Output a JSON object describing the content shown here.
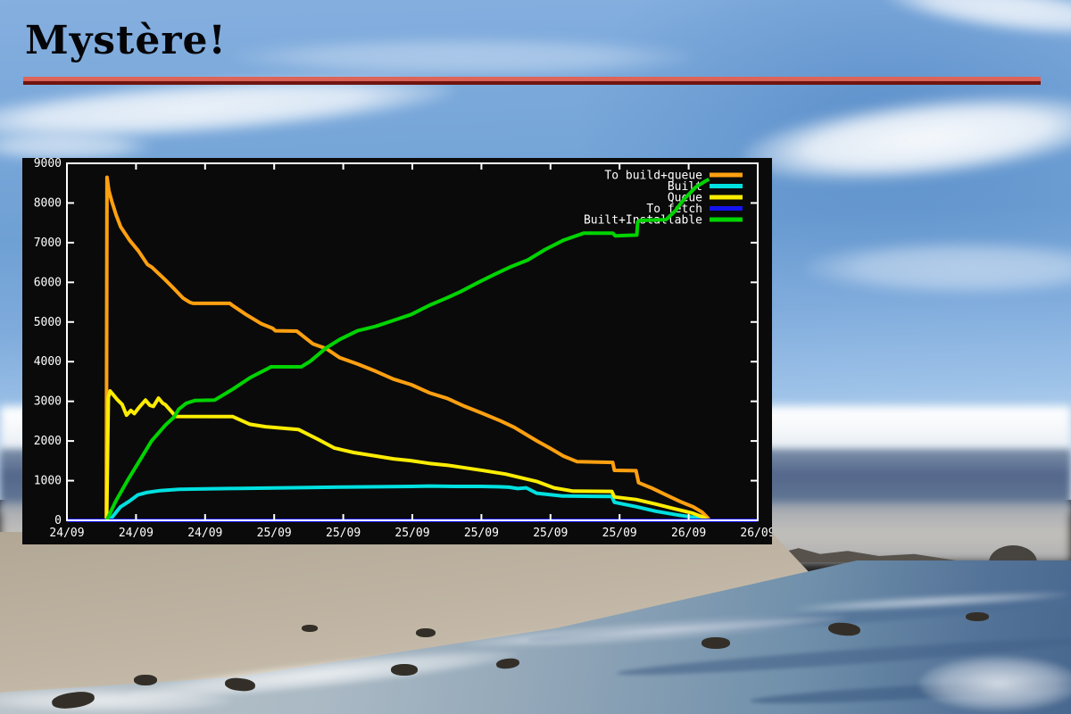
{
  "slide": {
    "title": "Mystère!",
    "rule_color_top": "#dd6458",
    "rule_color_bottom": "#701410"
  },
  "chart_data": {
    "type": "line",
    "title": "",
    "xlabel": "",
    "ylabel": "",
    "plot_background": "#0a0a0a",
    "frame_color": "#ffffff",
    "text_color": "#ffffff",
    "grid": false,
    "legend_position": "top-right-inside",
    "x_unit": "hours since first tick (ticks every 4h)",
    "x_range": [
      0,
      40
    ],
    "y_range": [
      0,
      9000
    ],
    "x_tick_hours": [
      0,
      4,
      8,
      12,
      16,
      20,
      24,
      28,
      32,
      36,
      40
    ],
    "x_tick_labels": [
      "24/09",
      "24/09",
      "24/09",
      "25/09",
      "25/09",
      "25/09",
      "25/09",
      "25/09",
      "25/09",
      "26/09",
      "26/09"
    ],
    "y_ticks": [
      0,
      1000,
      2000,
      3000,
      4000,
      5000,
      6000,
      7000,
      8000,
      9000
    ],
    "y_tick_labels": [
      "0",
      "1000",
      "2000",
      "3000",
      "4000",
      "5000",
      "6000",
      "7000",
      "8000",
      "9000"
    ],
    "series": [
      {
        "name": "To build+queue",
        "color": "#ffa010",
        "points": [
          [
            2.28,
            0
          ],
          [
            2.32,
            8650
          ],
          [
            2.43,
            8310
          ],
          [
            2.6,
            8040
          ],
          [
            2.85,
            7700
          ],
          [
            3.11,
            7400
          ],
          [
            3.63,
            7060
          ],
          [
            4.14,
            6790
          ],
          [
            4.66,
            6450
          ],
          [
            4.92,
            6380
          ],
          [
            5.7,
            6060
          ],
          [
            6.22,
            5830
          ],
          [
            6.73,
            5600
          ],
          [
            7.1,
            5500
          ],
          [
            7.3,
            5470
          ],
          [
            9.43,
            5470
          ],
          [
            9.58,
            5420
          ],
          [
            10.36,
            5190
          ],
          [
            11.24,
            4960
          ],
          [
            11.91,
            4840
          ],
          [
            12.07,
            4780
          ],
          [
            13.31,
            4770
          ],
          [
            14.24,
            4450
          ],
          [
            15.02,
            4330
          ],
          [
            15.8,
            4100
          ],
          [
            16.83,
            3940
          ],
          [
            17.87,
            3760
          ],
          [
            18.91,
            3560
          ],
          [
            19.94,
            3420
          ],
          [
            20.98,
            3215
          ],
          [
            22.01,
            3075
          ],
          [
            23.05,
            2870
          ],
          [
            24.09,
            2690
          ],
          [
            25.12,
            2505
          ],
          [
            25.9,
            2345
          ],
          [
            27.2,
            2005
          ],
          [
            27.97,
            1820
          ],
          [
            28.75,
            1620
          ],
          [
            29.53,
            1480
          ],
          [
            31.6,
            1460
          ],
          [
            31.7,
            1260
          ],
          [
            32.95,
            1250
          ],
          [
            33.1,
            950
          ],
          [
            33.93,
            800
          ],
          [
            34.7,
            640
          ],
          [
            35.48,
            480
          ],
          [
            36.26,
            340
          ],
          [
            36.78,
            205
          ],
          [
            37.09,
            70
          ],
          [
            37.2,
            0
          ]
        ]
      },
      {
        "name": "Built",
        "color": "#00e0e0",
        "points": [
          [
            2.28,
            0
          ],
          [
            2.6,
            70
          ],
          [
            3.1,
            340
          ],
          [
            3.6,
            480
          ],
          [
            4.1,
            640
          ],
          [
            4.6,
            700
          ],
          [
            5.4,
            750
          ],
          [
            6.5,
            780
          ],
          [
            8,
            795
          ],
          [
            10,
            805
          ],
          [
            12,
            815
          ],
          [
            14,
            825
          ],
          [
            16,
            840
          ],
          [
            18,
            845
          ],
          [
            20,
            855
          ],
          [
            21,
            865
          ],
          [
            22.5,
            855
          ],
          [
            24,
            855
          ],
          [
            25,
            845
          ],
          [
            25.6,
            835
          ],
          [
            26.1,
            800
          ],
          [
            26.6,
            820
          ],
          [
            27.2,
            685
          ],
          [
            28.7,
            615
          ],
          [
            30.5,
            605
          ],
          [
            31.55,
            600
          ],
          [
            31.7,
            455
          ],
          [
            32.95,
            345
          ],
          [
            34.1,
            230
          ],
          [
            35.3,
            140
          ],
          [
            36.6,
            55
          ],
          [
            37.05,
            0
          ]
        ]
      },
      {
        "name": "Queue",
        "color": "#fced00",
        "points": [
          [
            2.3,
            0
          ],
          [
            2.4,
            3100
          ],
          [
            2.5,
            3260
          ],
          [
            2.9,
            3050
          ],
          [
            3.2,
            2920
          ],
          [
            3.45,
            2650
          ],
          [
            3.7,
            2770
          ],
          [
            3.9,
            2690
          ],
          [
            4.2,
            2860
          ],
          [
            4.55,
            3030
          ],
          [
            4.8,
            2900
          ],
          [
            5.0,
            2870
          ],
          [
            5.3,
            3080
          ],
          [
            5.55,
            2950
          ],
          [
            5.7,
            2915
          ],
          [
            6.3,
            2620
          ],
          [
            9.6,
            2615
          ],
          [
            10.6,
            2420
          ],
          [
            11.5,
            2360
          ],
          [
            13.4,
            2290
          ],
          [
            14.5,
            2050
          ],
          [
            15.5,
            1820
          ],
          [
            16.6,
            1710
          ],
          [
            17.9,
            1620
          ],
          [
            18.9,
            1550
          ],
          [
            19.9,
            1505
          ],
          [
            20.98,
            1435
          ],
          [
            22,
            1390
          ],
          [
            23.1,
            1320
          ],
          [
            24.1,
            1255
          ],
          [
            25.4,
            1165
          ],
          [
            27.2,
            980
          ],
          [
            28.2,
            820
          ],
          [
            29.3,
            735
          ],
          [
            31.55,
            730
          ],
          [
            31.7,
            590
          ],
          [
            32.95,
            525
          ],
          [
            34.1,
            410
          ],
          [
            35.1,
            300
          ],
          [
            36.2,
            185
          ],
          [
            36.9,
            70
          ],
          [
            37.1,
            0
          ]
        ]
      },
      {
        "name": "To fetch",
        "color": "#1414f0",
        "points": [
          [
            0,
            0
          ],
          [
            40,
            0
          ]
        ]
      },
      {
        "name": "Built+Installable",
        "color": "#00d400",
        "points": [
          [
            2.3,
            0
          ],
          [
            2.85,
            500
          ],
          [
            3.5,
            1000
          ],
          [
            4.2,
            1500
          ],
          [
            4.9,
            2000
          ],
          [
            5.7,
            2400
          ],
          [
            6.2,
            2600
          ],
          [
            6.47,
            2800
          ],
          [
            6.9,
            2950
          ],
          [
            7.4,
            3020
          ],
          [
            8.55,
            3030
          ],
          [
            9.58,
            3300
          ],
          [
            10.62,
            3600
          ],
          [
            11.65,
            3830
          ],
          [
            11.81,
            3870
          ],
          [
            13.57,
            3870
          ],
          [
            14.09,
            4010
          ],
          [
            15.02,
            4350
          ],
          [
            15.8,
            4560
          ],
          [
            16.83,
            4780
          ],
          [
            17.87,
            4890
          ],
          [
            18.91,
            5040
          ],
          [
            19.94,
            5190
          ],
          [
            20.98,
            5420
          ],
          [
            22.01,
            5610
          ],
          [
            22.79,
            5765
          ],
          [
            23.83,
            6000
          ],
          [
            24.76,
            6200
          ],
          [
            25.64,
            6380
          ],
          [
            26.68,
            6560
          ],
          [
            27.71,
            6830
          ],
          [
            28.75,
            7060
          ],
          [
            29.94,
            7240
          ],
          [
            31.6,
            7240
          ],
          [
            31.75,
            7170
          ],
          [
            32.4,
            7185
          ],
          [
            33.0,
            7190
          ],
          [
            33.05,
            7520
          ],
          [
            33.2,
            7560
          ],
          [
            34.7,
            7580
          ],
          [
            35.22,
            7800
          ],
          [
            35.74,
            8100
          ],
          [
            36.41,
            8400
          ],
          [
            37.0,
            8560
          ],
          [
            37.18,
            8600
          ]
        ]
      }
    ]
  }
}
